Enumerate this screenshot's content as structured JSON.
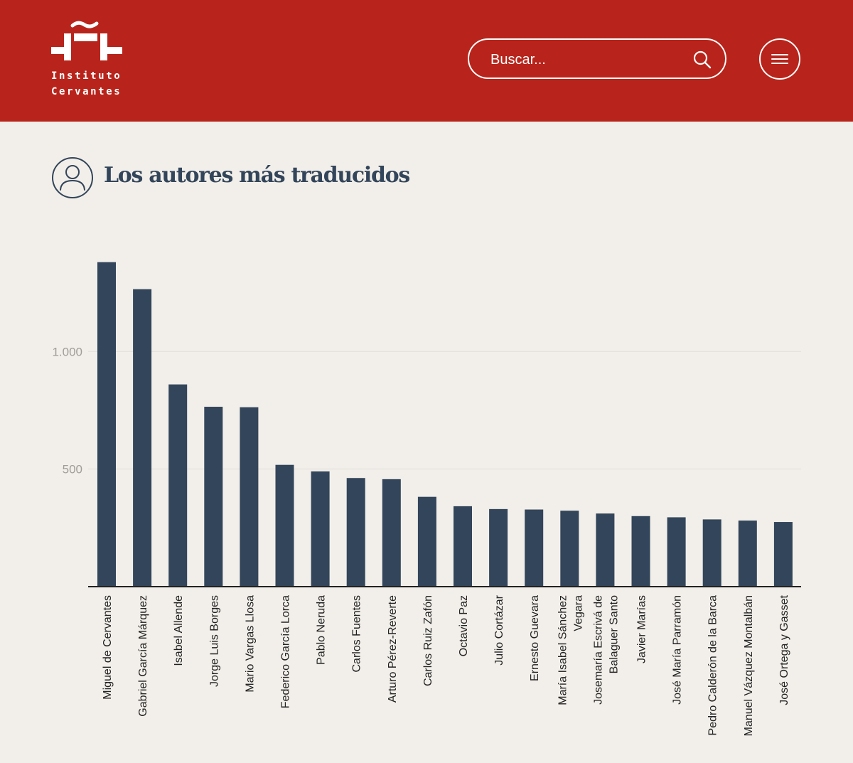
{
  "header": {
    "logo": {
      "line1": "Instituto",
      "line2": "Cervantes"
    },
    "search": {
      "placeholder": "Buscar...",
      "icon": "search-icon"
    },
    "menu": {
      "icon": "hamburger-menu-icon"
    }
  },
  "section": {
    "title": "Los autores más traducidos",
    "icon": "person-icon"
  },
  "colors": {
    "header_bg": "#b8241b",
    "page_bg": "#f2efea",
    "bar": "#33455a",
    "title": "#33455a"
  },
  "chart_data": {
    "type": "bar",
    "title": "",
    "xlabel": "",
    "ylabel": "",
    "ylim": [
      0,
      1400
    ],
    "yticks": [
      {
        "value": 500,
        "label": "500"
      },
      {
        "value": 1000,
        "label": "1.000"
      }
    ],
    "grid": true,
    "categories": [
      [
        "Miguel de Cervantes"
      ],
      [
        "Gabriel García Márquez"
      ],
      [
        "Isabel Allende"
      ],
      [
        "Jorge Luis Borges"
      ],
      [
        "Mario Vargas Llosa"
      ],
      [
        "Federico García Lorca"
      ],
      [
        "Pablo Neruda"
      ],
      [
        "Carlos Fuentes"
      ],
      [
        "Arturo Pérez-Reverte"
      ],
      [
        "Carlos Ruiz Zafón"
      ],
      [
        "Octavio Paz"
      ],
      [
        "Julio Cortázar"
      ],
      [
        "Ernesto Guevara"
      ],
      [
        "María Isabel Sánchez",
        "Vegara"
      ],
      [
        "Josemaría Escrivá de",
        "Balaguer Santo"
      ],
      [
        "Javier Marías"
      ],
      [
        "José María Parramón"
      ],
      [
        "Pedro Calderón de la Barca"
      ],
      [
        "Manuel Vázquez Montalbán"
      ],
      [
        "José Ortega y Gasset"
      ]
    ],
    "values": [
      1380,
      1265,
      860,
      765,
      763,
      518,
      490,
      462,
      457,
      382,
      342,
      330,
      328,
      323,
      311,
      300,
      295,
      286,
      281,
      275
    ]
  }
}
